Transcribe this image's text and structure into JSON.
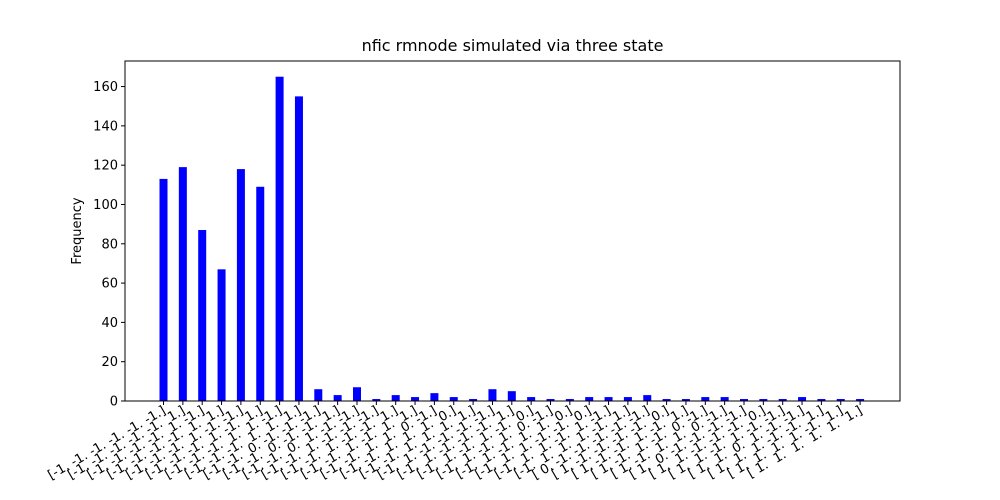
{
  "chart_data": {
    "type": "bar",
    "title": "nfic rmnode simulated via three state",
    "xlabel": "",
    "ylabel": "Frequency",
    "ylim": [
      0,
      173
    ],
    "yticks": [
      0,
      20,
      40,
      60,
      80,
      100,
      120,
      140,
      160
    ],
    "grid": false,
    "bar_color": "#0000ff",
    "categories": [
      "[-1. -1. -1. -1. -1. -1.]",
      "[-1. -1. -1. -1. -1.  1.]",
      "[-1. -1. -1. -1.  1. -1.]",
      "[-1. -1. -1. -1.  1.  1.]",
      "[-1. -1. -1.  1. -1. -1.]",
      "[-1. -1. -1.  1. -1.  1.]",
      "[-1. -1. -1.  1.  1. -1.]",
      "[-1. -1. -1.  1.  1.  1.]",
      "[-1. -1.  0. -1. -1. -1.]",
      "[-1. -1.  0. -1. -1.  1.]",
      "[-1. -1.  0.  1. -1. -1.]",
      "[-1. -1.  1. -1. -1. -1.]",
      "[-1. -1.  1. -1. -1.  1.]",
      "[-1. -1.  1. -1.  1.  1.]",
      "[-1. -1.  1.  1.  0. -1.]",
      "[-1. -1.  1.  1.  1.  0.]",
      "[-1. -1.  1.  1.  1.  1.]",
      "[-1.  1. -1. -1. -1. -1.]",
      "[-1.  1. -1. -1. -1.  1.]",
      "[-1.  1. -1.  1. -1.  0.]",
      "[-1.  1. -1.  1.  0. -1.]",
      "[-1.  1. -1.  1.  1.  0.]",
      "[-1.  1.  1. -1. -1.  0.]",
      "[-1.  1.  1. -1.  1. -1.]",
      "[-1.  1.  1.  1. -1.  1.]",
      "[ 0. -1. -1. -1. -1. -1.]",
      "[ 1. -1. -1. -1. -1.  0.]",
      "[ 1. -1. -1.  1. -1.  1.]",
      "[ 1. -1.  1. -1.  0. -1.]",
      "[ 1. -1.  1.  1.  0. -1.]",
      "[ 1.  0. -1. -1. -1. -1.]",
      "[ 1.  1. -1. -1. -1.  0.]",
      "[ 1.  1. -1.  1. -1. -1.]",
      "[ 1.  1.  0.  1. -1. -1.]",
      "[ 1.  1.  1. -1. -1.  1.]",
      "[ 1.  1.  1.  1. -1.  1.]",
      "[ 1.  1.  1.  1.  1.  1.]"
    ],
    "values": [
      113,
      119,
      87,
      67,
      118,
      109,
      165,
      155,
      6,
      3,
      7,
      1,
      3,
      2,
      4,
      2,
      1,
      6,
      5,
      2,
      1,
      1,
      2,
      2,
      2,
      3,
      1,
      1,
      2,
      2,
      1,
      1,
      1,
      2,
      1,
      1,
      1
    ]
  }
}
